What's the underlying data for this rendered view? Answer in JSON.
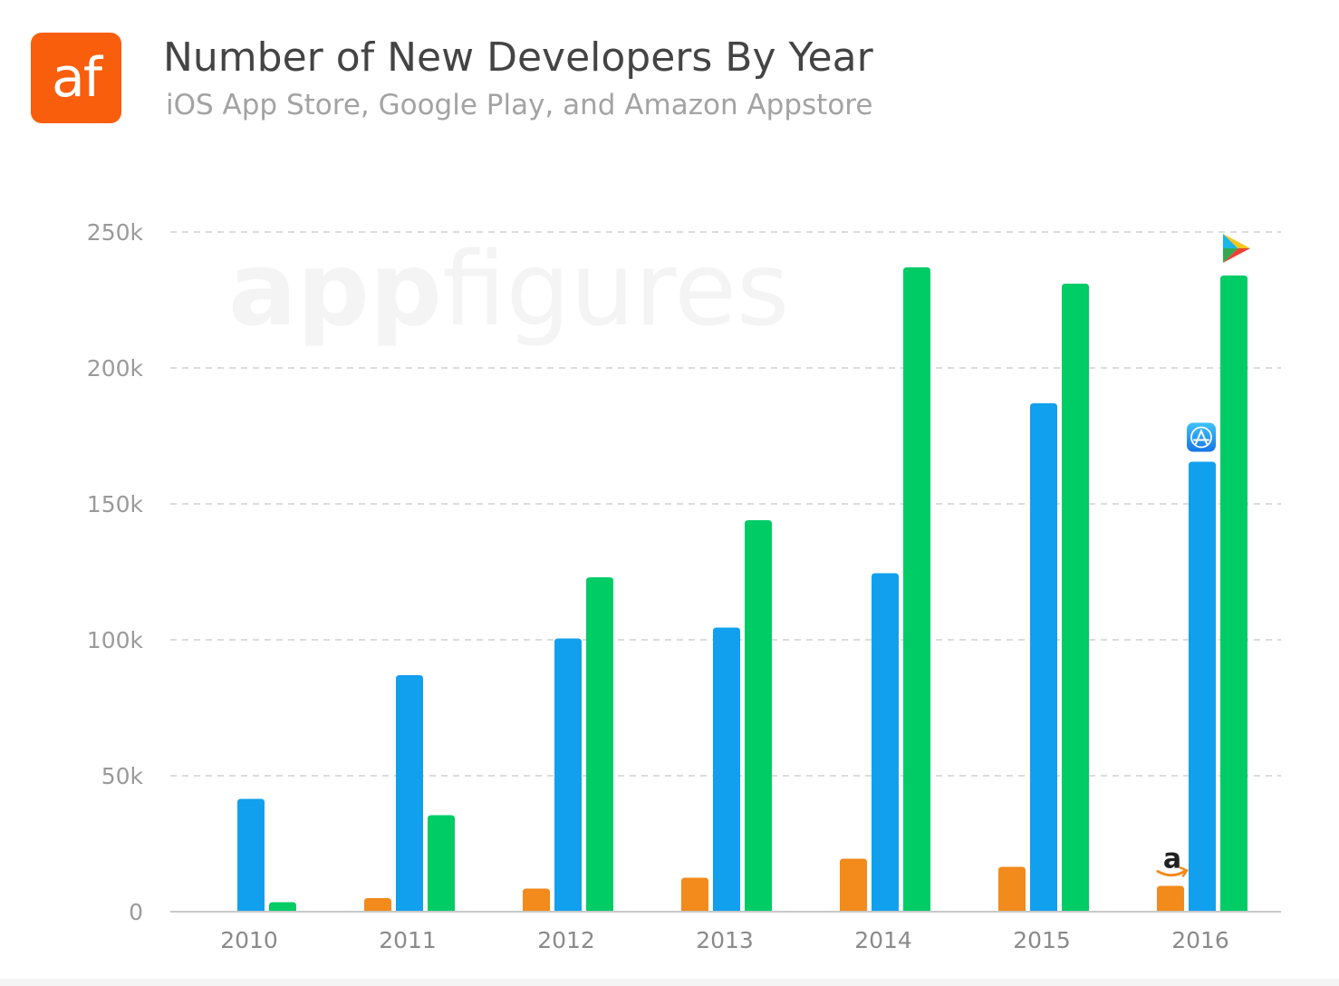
{
  "header": {
    "logo_text": "af",
    "title": "Number of New Developers By Year",
    "subtitle": "iOS App Store, Google Play, and Amazon Appstore"
  },
  "watermark": {
    "bold": "app",
    "light": "figures"
  },
  "chart_data": {
    "type": "bar",
    "title": "Number of New Developers By Year",
    "subtitle": "iOS App Store, Google Play, and Amazon Appstore",
    "categories": [
      "2010",
      "2011",
      "2012",
      "2013",
      "2014",
      "2015",
      "2016"
    ],
    "series": [
      {
        "key": "amazon",
        "icon": "amazon-icon",
        "color": "#f28a1c",
        "values": [
          0,
          5000,
          8500,
          12500,
          19500,
          16500,
          9500
        ]
      },
      {
        "key": "ios",
        "icon": "app-store-icon",
        "color": "#11a0ee",
        "values": [
          41500,
          87000,
          100500,
          104500,
          124500,
          187000,
          165500
        ]
      },
      {
        "key": "google",
        "icon": "google-play-icon",
        "color": "#00cc66",
        "values": [
          3500,
          35500,
          123000,
          144000,
          237000,
          231000,
          234000
        ]
      }
    ],
    "y_ticks": [
      "0",
      "50k",
      "100k",
      "150k",
      "200k",
      "250k"
    ],
    "ylim": [
      0,
      250000
    ],
    "grid": true,
    "grid_style": "dashed",
    "legend": "icons above last category"
  }
}
